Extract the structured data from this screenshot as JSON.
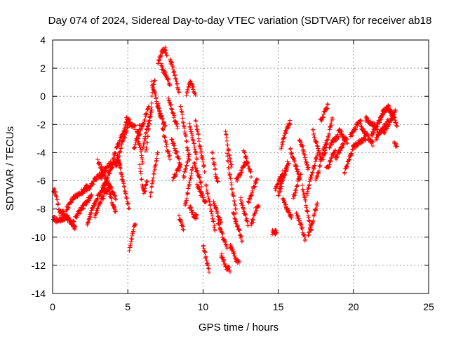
{
  "chart_data": {
    "type": "scatter",
    "title": "Day 074 of 2024, Sidereal Day-to-day VTEC variation (SDTVAR) for receiver ab18",
    "xlabel": "GPS time / hours",
    "ylabel": "SDTVAR / TECUs",
    "xlim": [
      0,
      25
    ],
    "ylim": [
      -14,
      4
    ],
    "xticks": [
      "0",
      "5",
      "10",
      "15",
      "20",
      "25"
    ],
    "yticks": [
      "4",
      "2",
      "0",
      "-2",
      "-4",
      "-6",
      "-8",
      "-10",
      "-12",
      "-14"
    ],
    "grid": true,
    "marker": "plus",
    "color": "#ff0000",
    "series": [
      {
        "segments": [
          {
            "x0": 0.05,
            "x1": 0.5,
            "y": [
              -6.6,
              -6.8,
              -7.3,
              -7.8,
              -8.3
            ]
          },
          {
            "x0": 0.05,
            "x1": 1.5,
            "y": [
              -8.6,
              -8.9,
              -8.7,
              -8.5,
              -8.9,
              -9.1
            ]
          },
          {
            "x0": 0.5,
            "x1": 1.5,
            "y": [
              -8.2,
              -8.4,
              -8.9,
              -9.3
            ]
          },
          {
            "x0": 0.9,
            "x1": 2.3,
            "y": [
              -8.0,
              -7.4,
              -7.0,
              -6.8,
              -6.4
            ]
          },
          {
            "x0": 1.5,
            "x1": 2.6,
            "y": [
              -8.6,
              -8.2,
              -7.8,
              -7.4,
              -7.0
            ]
          },
          {
            "x0": 2.0,
            "x1": 3.5,
            "y": [
              -6.8,
              -6.6,
              -6.2,
              -5.8,
              -5.5,
              -5.2
            ]
          },
          {
            "x0": 2.3,
            "x1": 3.6,
            "y": [
              -9.2,
              -8.3,
              -7.6,
              -7.0,
              -6.6,
              -6.2
            ]
          },
          {
            "x0": 2.8,
            "x1": 3.8,
            "y": [
              -8.6,
              -7.8,
              -7.2,
              -6.8,
              -6.5
            ]
          },
          {
            "x0": 3.0,
            "x1": 4.2,
            "y": [
              -4.6,
              -5.2,
              -6.0,
              -6.6,
              -7.2
            ]
          },
          {
            "x0": 3.2,
            "x1": 4.5,
            "y": [
              -5.8,
              -5.2,
              -4.8,
              -4.6,
              -4.8
            ]
          },
          {
            "x0": 3.3,
            "x1": 4.0,
            "y": [
              -6.6,
              -6.0,
              -5.4,
              -5.0
            ]
          },
          {
            "x0": 3.7,
            "x1": 4.2,
            "y": [
              -6.4,
              -7.2,
              -7.8,
              -8.3
            ]
          },
          {
            "x0": 4.0,
            "x1": 5.1,
            "y": [
              -4.4,
              -3.8,
              -3.2,
              -2.6,
              -2.0,
              -1.7
            ]
          },
          {
            "x0": 4.2,
            "x1": 5.0,
            "y": [
              -5.0,
              -4.2,
              -3.4,
              -2.8,
              -2.2
            ]
          },
          {
            "x0": 4.3,
            "x1": 5.1,
            "y": [
              -4.2,
              -5.2,
              -6.2,
              -7.2,
              -8.0
            ]
          },
          {
            "x0": 4.9,
            "x1": 5.5,
            "y": [
              -1.6,
              -2.0,
              -2.2
            ]
          },
          {
            "x0": 5.1,
            "x1": 5.5,
            "y": [
              -10.9,
              -10.4,
              -9.8,
              -9.4,
              -9.0
            ]
          },
          {
            "x0": 5.4,
            "x1": 5.8,
            "y": [
              -3.8,
              -3.2,
              -2.6,
              -2.0
            ]
          },
          {
            "x0": 5.6,
            "x1": 6.0,
            "y": [
              -2.6,
              -3.2,
              -4.0,
              -4.6
            ]
          },
          {
            "x0": 5.8,
            "x1": 6.3,
            "y": [
              -5.0,
              -5.8,
              -6.6,
              -6.8,
              -6.4,
              -6.0
            ]
          },
          {
            "x0": 5.7,
            "x1": 6.4,
            "y": [
              -3.0,
              -2.4,
              -1.8,
              -1.2,
              -0.8
            ]
          },
          {
            "x0": 6.0,
            "x1": 6.6,
            "y": [
              -3.8,
              -3.0,
              -2.2,
              -1.6,
              -1.0
            ]
          },
          {
            "x0": 6.2,
            "x1": 6.8,
            "y": [
              -4.0,
              -3.0,
              -1.8,
              -0.6,
              0.8,
              1.2
            ]
          },
          {
            "x0": 6.5,
            "x1": 7.0,
            "y": [
              -7.0,
              -6.2,
              -5.4,
              -4.6,
              -4.0
            ]
          },
          {
            "x0": 6.6,
            "x1": 7.2,
            "y": [
              0.9,
              0.4,
              -0.3,
              -1.0,
              -1.6
            ]
          },
          {
            "x0": 7.0,
            "x1": 7.5,
            "y": [
              -0.6,
              -1.2,
              -1.8,
              -2.2
            ]
          },
          {
            "x0": 7.0,
            "x1": 7.6,
            "y": [
              2.4,
              2.8,
              3.2,
              3.4,
              3.0
            ]
          },
          {
            "x0": 7.2,
            "x1": 7.8,
            "y": [
              2.2,
              1.8,
              1.6,
              1.2,
              0.9
            ]
          },
          {
            "x0": 7.3,
            "x1": 7.8,
            "y": [
              -2.2,
              -3.0,
              -3.8,
              -4.4
            ]
          },
          {
            "x0": 7.7,
            "x1": 8.3,
            "y": [
              0.0,
              -0.6,
              -1.2,
              -1.8,
              -2.2
            ]
          },
          {
            "x0": 7.8,
            "x1": 8.4,
            "y": [
              2.6,
              2.2,
              1.6,
              1.0,
              0.4
            ]
          },
          {
            "x0": 7.9,
            "x1": 8.5,
            "y": [
              -3.0,
              -3.6,
              -4.2,
              -4.8
            ]
          },
          {
            "x0": 8.0,
            "x1": 8.5,
            "y": [
              -5.8,
              -5.4,
              -5.0
            ]
          },
          {
            "x0": 8.4,
            "x1": 8.7,
            "y": [
              -8.6,
              -9.0,
              -9.4
            ]
          },
          {
            "x0": 8.5,
            "x1": 9.1,
            "y": [
              -0.6,
              -1.6,
              -2.6,
              -3.6,
              -4.6
            ]
          },
          {
            "x0": 8.7,
            "x1": 9.1,
            "y": [
              -5.8,
              -5.2,
              -4.6,
              -4.0
            ]
          },
          {
            "x0": 8.8,
            "x1": 9.3,
            "y": [
              -7.8,
              -7.0,
              -6.0,
              -5.0
            ]
          },
          {
            "x0": 8.9,
            "x1": 9.5,
            "y": [
              0.2,
              0.8,
              1.0,
              0.6,
              0.0
            ]
          },
          {
            "x0": 9.1,
            "x1": 9.6,
            "y": [
              -7.8,
              -8.4,
              -8.6
            ]
          },
          {
            "x0": 9.1,
            "x1": 9.6,
            "y": [
              -2.0,
              -2.8,
              -3.6,
              -4.4
            ]
          },
          {
            "x0": 9.4,
            "x1": 9.9,
            "y": [
              -4.6,
              -5.2,
              -5.8,
              -6.4
            ]
          },
          {
            "x0": 9.5,
            "x1": 10.1,
            "y": [
              -1.8,
              -2.6,
              -3.6,
              -4.4,
              -5.2
            ]
          },
          {
            "x0": 9.6,
            "x1": 10.2,
            "y": [
              -6.2,
              -6.8,
              -7.2,
              -7.6
            ]
          },
          {
            "x0": 10.0,
            "x1": 10.4,
            "y": [
              -10.6,
              -11.2,
              -11.8,
              -12.4
            ]
          },
          {
            "x0": 10.2,
            "x1": 10.8,
            "y": [
              -6.4,
              -7.4,
              -8.4,
              -9.6
            ]
          },
          {
            "x0": 10.6,
            "x1": 11.0,
            "y": [
              -4.0,
              -4.8,
              -5.6,
              -6.2
            ]
          },
          {
            "x0": 10.7,
            "x1": 11.2,
            "y": [
              -7.4,
              -8.0,
              -8.6,
              -9.0
            ]
          },
          {
            "x0": 11.0,
            "x1": 11.6,
            "y": [
              -9.0,
              -9.6,
              -10.2,
              -10.8
            ]
          },
          {
            "x0": 11.2,
            "x1": 11.8,
            "y": [
              -11.2,
              -11.8,
              -12.2,
              -12.3
            ]
          },
          {
            "x0": 11.5,
            "x1": 11.9,
            "y": [
              -2.6,
              -3.4,
              -4.2,
              -5.0
            ]
          },
          {
            "x0": 11.6,
            "x1": 12.2,
            "y": [
              -4.2,
              -5.4,
              -6.4,
              -7.4,
              -8.2
            ]
          },
          {
            "x0": 11.8,
            "x1": 12.4,
            "y": [
              -10.6,
              -11.0,
              -11.6,
              -11.9
            ]
          },
          {
            "x0": 12.0,
            "x1": 12.6,
            "y": [
              -8.2,
              -9.0,
              -9.6,
              -10.2
            ]
          },
          {
            "x0": 12.2,
            "x1": 12.9,
            "y": [
              -6.0,
              -5.6,
              -5.0,
              -4.6
            ]
          },
          {
            "x0": 12.5,
            "x1": 13.0,
            "y": [
              -7.2,
              -8.0,
              -8.6,
              -9.2
            ]
          },
          {
            "x0": 12.7,
            "x1": 13.2,
            "y": [
              -3.8,
              -4.4,
              -5.0,
              -5.6
            ]
          },
          {
            "x0": 13.0,
            "x1": 13.6,
            "y": [
              -7.6,
              -7.0,
              -6.4,
              -5.8
            ]
          },
          {
            "x0": 13.2,
            "x1": 13.7,
            "y": [
              -9.2,
              -8.6,
              -8.0,
              -7.6
            ]
          },
          {
            "x0": 14.6,
            "x1": 14.9,
            "y": [
              -9.7,
              -9.6,
              -9.7
            ]
          },
          {
            "x0": 14.8,
            "x1": 15.3,
            "y": [
              -6.6,
              -6.2,
              -5.8,
              -5.4
            ]
          },
          {
            "x0": 15.0,
            "x1": 15.6,
            "y": [
              -7.0,
              -6.4,
              -5.6,
              -4.8
            ]
          },
          {
            "x0": 15.1,
            "x1": 15.7,
            "y": [
              -6.4,
              -6.0,
              -5.6,
              -5.2,
              -4.8
            ]
          },
          {
            "x0": 15.2,
            "x1": 15.8,
            "y": [
              -3.6,
              -2.8,
              -2.2,
              -1.8
            ]
          },
          {
            "x0": 15.3,
            "x1": 15.9,
            "y": [
              -7.2,
              -7.8,
              -8.2,
              -8.6
            ]
          },
          {
            "x0": 15.8,
            "x1": 16.4,
            "y": [
              -3.8,
              -4.4,
              -5.0,
              -5.6
            ]
          },
          {
            "x0": 16.0,
            "x1": 16.5,
            "y": [
              -7.2,
              -6.6,
              -6.0,
              -5.6
            ]
          },
          {
            "x0": 16.2,
            "x1": 16.8,
            "y": [
              -8.4,
              -8.8,
              -9.4,
              -10.2
            ]
          },
          {
            "x0": 16.4,
            "x1": 17.0,
            "y": [
              -3.0,
              -3.6,
              -4.4,
              -5.2
            ]
          },
          {
            "x0": 16.6,
            "x1": 17.2,
            "y": [
              -6.4,
              -7.2,
              -8.0,
              -8.8,
              -9.6
            ]
          },
          {
            "x0": 16.9,
            "x1": 17.6,
            "y": [
              -7.0,
              -6.2,
              -5.4,
              -4.8,
              -4.2
            ]
          },
          {
            "x0": 17.0,
            "x1": 17.6,
            "y": [
              -9.8,
              -9.2,
              -8.4,
              -7.6
            ]
          },
          {
            "x0": 17.3,
            "x1": 17.9,
            "y": [
              -2.4,
              -3.2,
              -4.0,
              -4.6
            ]
          },
          {
            "x0": 17.5,
            "x1": 18.2,
            "y": [
              -6.0,
              -5.4,
              -4.6,
              -3.8,
              -3.2
            ]
          },
          {
            "x0": 17.8,
            "x1": 18.3,
            "y": [
              -1.8,
              -1.4,
              -1.0,
              -0.6
            ]
          },
          {
            "x0": 18.0,
            "x1": 18.6,
            "y": [
              -4.4,
              -3.8,
              -3.0,
              -2.2,
              -1.6
            ]
          },
          {
            "x0": 18.2,
            "x1": 18.8,
            "y": [
              -5.2,
              -4.8,
              -4.2,
              -3.8
            ]
          },
          {
            "x0": 18.4,
            "x1": 19.0,
            "y": [
              -3.6,
              -3.2,
              -3.0,
              -2.8
            ]
          },
          {
            "x0": 18.8,
            "x1": 19.4,
            "y": [
              -4.4,
              -4.0,
              -3.6,
              -3.2
            ]
          },
          {
            "x0": 19.0,
            "x1": 19.6,
            "y": [
              -2.4,
              -2.6,
              -3.0,
              -3.2
            ]
          },
          {
            "x0": 19.4,
            "x1": 20.2,
            "y": [
              -5.4,
              -4.8,
              -4.2,
              -3.6,
              -3.4
            ]
          },
          {
            "x0": 19.8,
            "x1": 20.5,
            "y": [
              -2.8,
              -2.4,
              -2.0,
              -1.8
            ]
          },
          {
            "x0": 20.0,
            "x1": 20.8,
            "y": [
              -3.6,
              -3.4,
              -3.2,
              -3.0
            ]
          },
          {
            "x0": 20.5,
            "x1": 21.3,
            "y": [
              -2.2,
              -2.6,
              -3.0,
              -3.4
            ]
          },
          {
            "x0": 20.8,
            "x1": 21.6,
            "y": [
              -1.6,
              -1.8,
              -2.0,
              -2.4
            ]
          },
          {
            "x0": 21.2,
            "x1": 22.0,
            "y": [
              -2.8,
              -2.4,
              -2.0,
              -1.6,
              -1.2
            ]
          },
          {
            "x0": 21.5,
            "x1": 22.3,
            "y": [
              -3.0,
              -2.6,
              -2.2,
              -1.8
            ]
          },
          {
            "x0": 21.8,
            "x1": 22.6,
            "y": [
              -1.4,
              -1.0,
              -0.8,
              -1.2
            ]
          },
          {
            "x0": 22.0,
            "x1": 22.8,
            "y": [
              -2.6,
              -2.2,
              -1.8,
              -1.4,
              -1.0
            ]
          },
          {
            "x0": 22.3,
            "x1": 22.9,
            "y": [
              -0.8,
              -1.2,
              -1.6,
              -2.0
            ]
          },
          {
            "x0": 22.7,
            "x1": 22.9,
            "y": [
              -3.3,
              -3.5
            ]
          }
        ]
      }
    ]
  }
}
